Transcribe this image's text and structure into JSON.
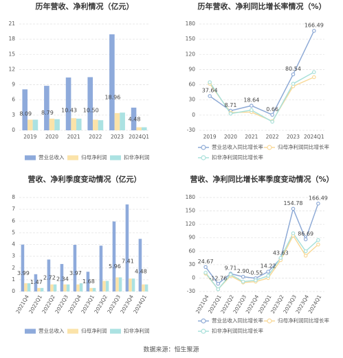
{
  "source": "数据来源：恒生聚源",
  "chart_data": [
    {
      "type": "bar",
      "title": "历年营收、净利情况（亿元）",
      "categories": [
        "2019",
        "2020",
        "2021",
        "2022",
        "2023",
        "2024Q1"
      ],
      "series": [
        {
          "name": "营业总收入",
          "color": "#8eaadb",
          "values": [
            8.09,
            8.79,
            10.43,
            10.5,
            18.96,
            4.48
          ],
          "value_labels": [
            "8.09",
            "8.79",
            "10.43",
            "10.50",
            "18.96",
            "4.48"
          ]
        },
        {
          "name": "归母净利润",
          "color": "#fbe3a9",
          "values": [
            2.1,
            2.3,
            2.4,
            2.1,
            3.4,
            0.6
          ]
        },
        {
          "name": "扣非净利润",
          "color": "#abe2e2",
          "values": [
            2.1,
            2.2,
            2.3,
            2.0,
            3.5,
            0.6
          ]
        }
      ],
      "ylim": [
        0,
        21
      ],
      "yticks": [
        0,
        3,
        6,
        9,
        12,
        15,
        18,
        21
      ],
      "grid": true
    },
    {
      "type": "line",
      "title": "历年营收、净利同比增长率情况（%）",
      "categories": [
        "2019",
        "2020",
        "2021",
        "2022",
        "2023",
        "2024Q1"
      ],
      "series": [
        {
          "name": "营业总收入同比增长率",
          "color": "#8eaad6",
          "values": [
            37.64,
            8.71,
            18.64,
            0.66,
            80.54,
            166.49
          ],
          "value_labels": [
            "37.64",
            "8.71",
            "18.64",
            "0.66",
            "80.54",
            "166.49"
          ]
        },
        {
          "name": "归母净利润同比增长率",
          "color": "#f9d998",
          "values": [
            62,
            5,
            6,
            -12,
            57,
            75
          ]
        },
        {
          "name": "扣非净利润同比增长率",
          "color": "#a8e0da",
          "values": [
            65,
            3,
            10,
            -13,
            62,
            85
          ]
        }
      ],
      "ylim": [
        -30,
        180
      ],
      "yticks": [
        -30,
        0,
        30,
        60,
        90,
        120,
        150,
        180
      ],
      "grid": true
    },
    {
      "type": "bar",
      "title": "营收、净利季度变动情况（亿元）",
      "categories": [
        "2021Q4",
        "2022Q1",
        "2022Q2",
        "2022Q3",
        "2022Q4",
        "2023Q1",
        "2023Q2",
        "2023Q3",
        "2023Q4",
        "2024Q1"
      ],
      "series": [
        {
          "name": "营业总收入",
          "color": "#8eaadb",
          "values": [
            3.99,
            1.47,
            2.72,
            2.34,
            3.97,
            1.68,
            3.9,
            5.96,
            7.41,
            4.48
          ],
          "value_labels": [
            "3.99",
            "1.47",
            "2.72",
            "2.34",
            "3.97",
            "1.68",
            null,
            "5.96",
            "7.41",
            "4.48"
          ]
        },
        {
          "name": "归母净利润",
          "color": "#fbe3a9",
          "values": [
            0.7,
            0.3,
            0.6,
            0.6,
            0.6,
            0.3,
            0.9,
            1.2,
            1.1,
            0.6
          ]
        },
        {
          "name": "扣非净利润",
          "color": "#abe2e2",
          "values": [
            0.7,
            0.3,
            0.6,
            0.6,
            0.7,
            0.3,
            0.9,
            1.2,
            1.1,
            0.6
          ]
        }
      ],
      "ylim": [
        0,
        8
      ],
      "yticks": [
        0,
        1,
        2,
        3,
        4,
        5,
        6,
        7,
        8
      ],
      "grid": true
    },
    {
      "type": "line",
      "title": "营收、净利同比增长率季度变动情况（%）",
      "categories": [
        "2021Q4",
        "2022Q1",
        "2022Q2",
        "2022Q3",
        "2022Q4",
        "2023Q1",
        "2023Q2",
        "2023Q3",
        "2023Q4",
        "2024Q1"
      ],
      "series": [
        {
          "name": "营业总收入同比增长率",
          "color": "#8eaad6",
          "values": [
            24.67,
            -12.76,
            9.71,
            2.9,
            -0.55,
            14.22,
            43.63,
            154.78,
            86.69,
            166.49
          ],
          "value_labels": [
            "24.67",
            "-12.76",
            "9.71",
            "2.90",
            "-0.55",
            "14.22",
            "43.63",
            "154.78",
            "86.69",
            "166.49"
          ]
        },
        {
          "name": "归母净利润同比增长率",
          "color": "#f9d998",
          "values": [
            10,
            -25,
            5,
            -10,
            -8,
            0,
            40,
            95,
            50,
            75
          ]
        },
        {
          "name": "扣非净利润同比增长率",
          "color": "#a8e0da",
          "values": [
            12,
            -25,
            8,
            -8,
            -5,
            5,
            45,
            100,
            60,
            85
          ]
        }
      ],
      "ylim": [
        -30,
        180
      ],
      "yticks": [
        -30,
        0,
        30,
        60,
        90,
        120,
        150,
        180
      ],
      "grid": true
    }
  ]
}
